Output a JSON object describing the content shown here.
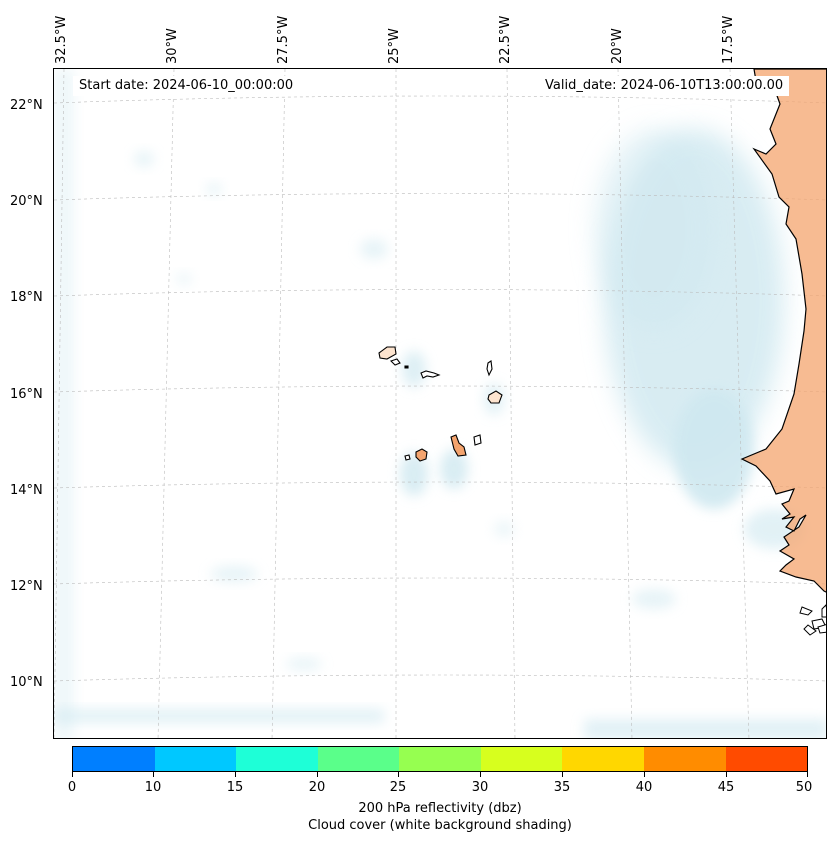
{
  "map": {
    "start_date": "Start date: 2024-06-10_00:00:00",
    "valid_date": "Valid_date: 2024-06-10T13:00:00.00",
    "lon_labels": [
      "32.5°W",
      "30°W",
      "27.5°W",
      "25°W",
      "22.5°W",
      "20°W",
      "17.5°W"
    ],
    "lat_labels": [
      "22°N",
      "20°N",
      "18°N",
      "16°N",
      "14°N",
      "12°N",
      "10°N"
    ],
    "land_color": "#f4a46e",
    "cloud_color": "#cfe8f0"
  },
  "colorbar": {
    "ticks": [
      "0",
      "10",
      "15",
      "20",
      "25",
      "30",
      "35",
      "40",
      "45",
      "50"
    ],
    "colors": [
      "#007fff",
      "#00c8ff",
      "#1effd7",
      "#5aff8a",
      "#96ff50",
      "#d7ff1e",
      "#ffd700",
      "#ff8c00",
      "#ff4b00"
    ],
    "label": "200 hPa reflectivity (dbz)",
    "sublabel": "Cloud cover (white background shading)"
  }
}
